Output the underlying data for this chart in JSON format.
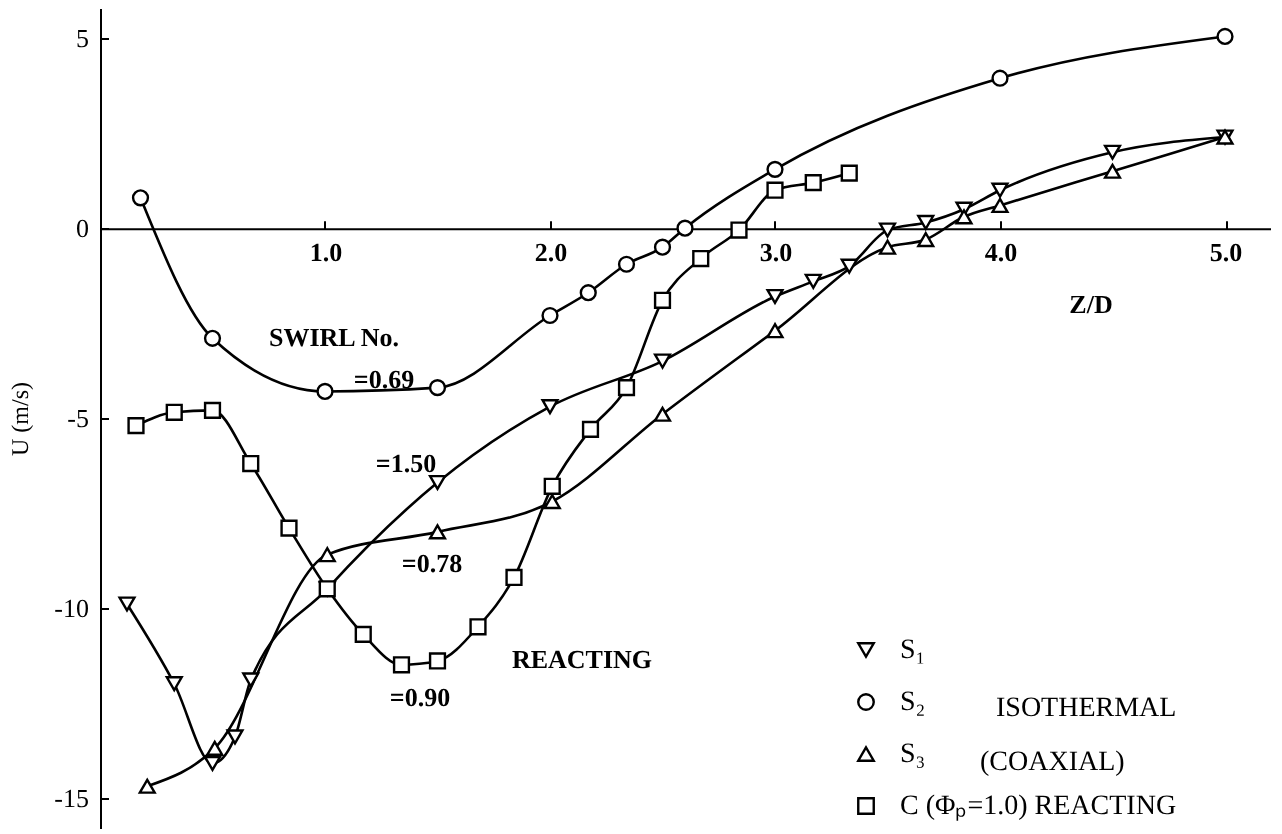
{
  "chart_data": {
    "type": "line",
    "xlabel": "Z/D",
    "ylabel": "U (m/s)",
    "xlim": [
      0,
      5.2
    ],
    "ylim": [
      -15.8,
      5.8
    ],
    "xticks": [
      {
        "value": 1,
        "label": "1.0"
      },
      {
        "value": 2,
        "label": "2.0"
      },
      {
        "value": 3,
        "label": "3.0"
      },
      {
        "value": 4,
        "label": "4.0"
      },
      {
        "value": 5,
        "label": "5.0"
      }
    ],
    "yticks": [
      5,
      0,
      -5,
      -10,
      -15
    ],
    "grid": false,
    "legend": "bottom right",
    "line_style": "solid",
    "series": [
      {
        "name": "S₁",
        "color": "#000000",
        "marker": "triangle-down",
        "x": [
          0.12,
          0.33,
          0.5,
          0.6,
          0.67,
          1.01,
          1.5,
          2.0,
          2.5,
          3.0,
          3.17,
          3.33,
          3.5,
          3.67,
          3.84,
          4.0,
          4.5,
          5.0
        ],
        "values": [
          -9.9,
          -12.0,
          -14.1,
          -13.4,
          -11.9,
          -9.5,
          -6.7,
          -4.7,
          -3.5,
          -1.8,
          -1.4,
          -1.0,
          -0.05,
          0.15,
          0.5,
          1.0,
          2.0,
          2.4
        ]
      },
      {
        "name": "S₂",
        "color": "#000000",
        "marker": "circle",
        "x": [
          0.18,
          0.5,
          1.0,
          1.5,
          2.0,
          2.17,
          2.34,
          2.5,
          2.6,
          3.0,
          4.0,
          5.0
        ],
        "values": [
          0.8,
          -2.9,
          -4.3,
          -4.2,
          -2.3,
          -1.7,
          -0.95,
          -0.5,
          0.0,
          1.55,
          3.95,
          5.05
        ]
      },
      {
        "name": "S₃",
        "color": "#000000",
        "marker": "triangle",
        "x": [
          0.21,
          0.51,
          1.01,
          1.5,
          2.01,
          2.5,
          3.0,
          3.5,
          3.67,
          3.84,
          4.0,
          4.5,
          5.0
        ],
        "values": [
          -14.7,
          -13.7,
          -8.6,
          -8.0,
          -7.2,
          -4.9,
          -2.7,
          -0.5,
          -0.3,
          0.3,
          0.6,
          1.5,
          2.4
        ]
      },
      {
        "name": "C (Φₚ=1.0) REACTING",
        "color": "#000000",
        "marker": "square",
        "x": [
          0.16,
          0.33,
          0.5,
          0.67,
          0.84,
          1.01,
          1.17,
          1.34,
          1.5,
          1.68,
          1.84,
          2.01,
          2.18,
          2.34,
          2.5,
          2.67,
          2.84,
          3.0,
          3.17,
          3.33
        ],
        "values": [
          -5.2,
          -4.85,
          -4.8,
          -6.2,
          -7.9,
          -9.5,
          -10.7,
          -11.5,
          -11.4,
          -10.5,
          -9.2,
          -6.8,
          -5.3,
          -4.2,
          -1.9,
          -0.8,
          -0.05,
          1.0,
          1.2,
          1.45
        ]
      }
    ],
    "annotations": [
      "SWIRL No.",
      "=0.69",
      "=1.50",
      "=0.78",
      "=0.90",
      "REACTING",
      "ISOTHERMAL",
      "(COAXIAL)"
    ]
  }
}
